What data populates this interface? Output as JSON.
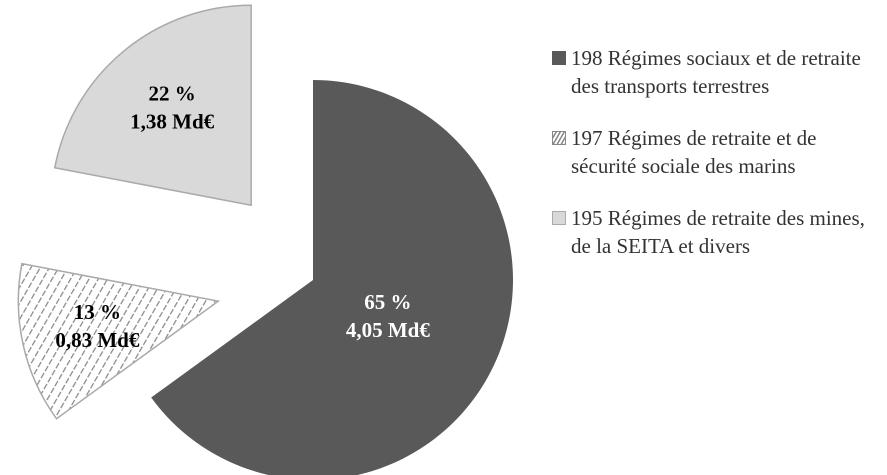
{
  "chart_data": {
    "type": "pie",
    "categories": [
      "198 Régimes sociaux et de retraite des transports terrestres",
      "197 Régimes de retraite et de sécurité sociale des marins",
      "195 Régimes de retraite des mines, de la SEITA et divers"
    ],
    "values": [
      65,
      13,
      22
    ],
    "value_labels": [
      "65 %",
      "13 %",
      "22 %"
    ],
    "amount_labels": [
      "4,05 Md€",
      "0,83 Md€",
      "1,38 Md€"
    ],
    "colors": [
      "#595959",
      "hatch",
      "#d9d9d9"
    ],
    "legend": "right"
  }
}
